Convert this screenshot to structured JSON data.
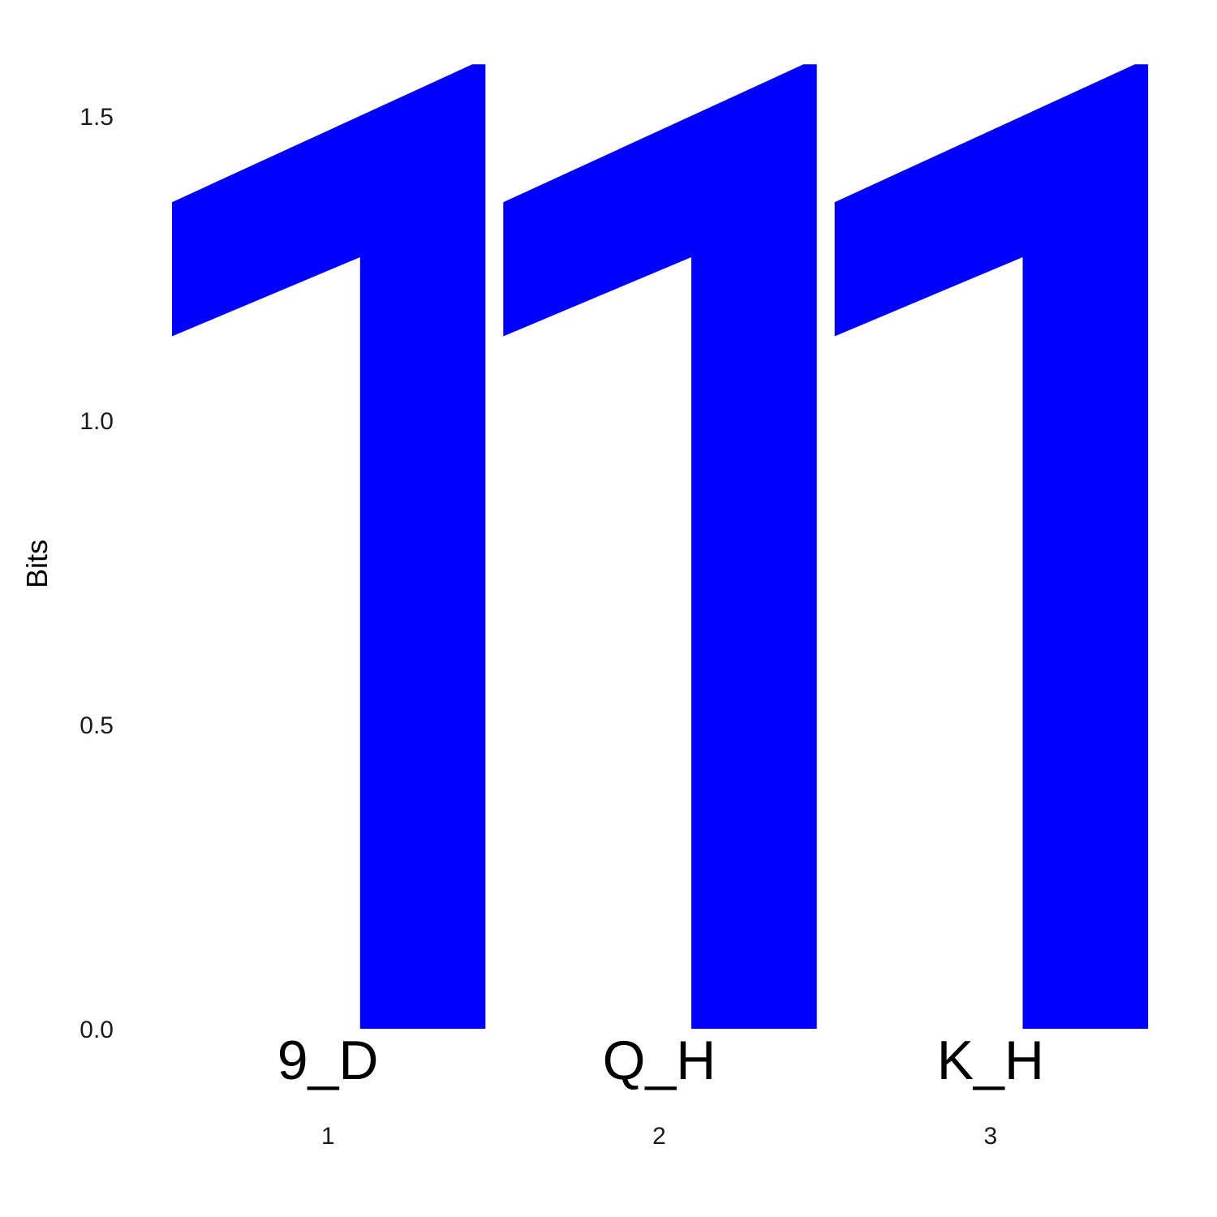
{
  "chart_data": {
    "type": "sequence-logo",
    "ylabel": "Bits",
    "ylim": [
      0,
      1.585
    ],
    "yticks": [
      0.0,
      0.5,
      1.0,
      1.5
    ],
    "ytick_labels": [
      "0.0",
      "0.5",
      "1.0",
      "1.5"
    ],
    "grid": false,
    "legend": "none",
    "positions": [
      {
        "position": "1",
        "label": "9_D",
        "glyphs": [
          {
            "symbol": "1",
            "bits": 1.585,
            "color": "#0000ff"
          }
        ]
      },
      {
        "position": "2",
        "label": "Q_H",
        "glyphs": [
          {
            "symbol": "1",
            "bits": 1.585,
            "color": "#0000ff"
          }
        ]
      },
      {
        "position": "3",
        "label": "K_H",
        "glyphs": [
          {
            "symbol": "1",
            "bits": 1.585,
            "color": "#0000ff"
          }
        ]
      }
    ]
  }
}
